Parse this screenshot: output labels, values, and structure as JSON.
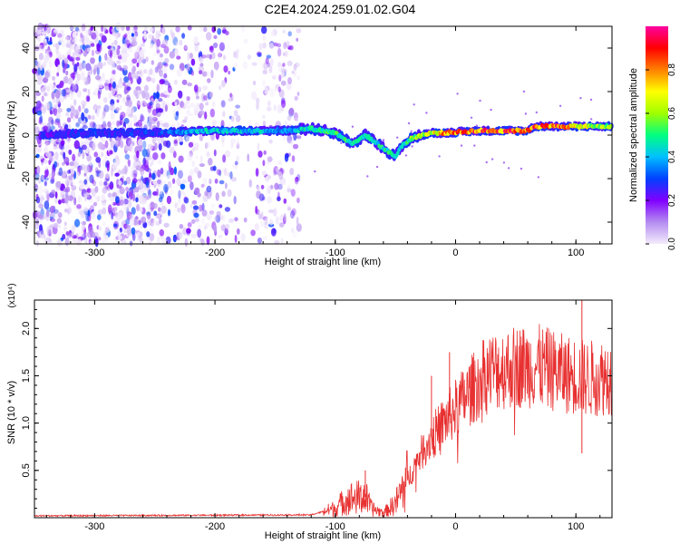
{
  "title": "C2E4.2024.259.01.02.G04",
  "chart_data": [
    {
      "type": "heatmap",
      "xlabel": "Height of straight line (km)",
      "ylabel": "Frequency (Hz)",
      "xlim": [
        -350,
        130
      ],
      "ylim": [
        -50,
        50
      ],
      "x_ticks": [
        -300,
        -200,
        -100,
        0,
        100
      ],
      "x_tick_labels": [
        "-300",
        "-200",
        "-100",
        "0",
        "100"
      ],
      "y_ticks": [
        -40,
        -20,
        0,
        20,
        40
      ],
      "y_tick_labels": [
        "-40",
        "-20",
        "0",
        "20",
        "40"
      ],
      "colorbar": {
        "label": "Normalized spectral amplitude",
        "range": [
          0,
          1
        ],
        "ticks": [
          0,
          0.2,
          0.4,
          0.6,
          0.8
        ],
        "tick_labels": [
          "0.0",
          "0.2",
          "0.4",
          "0.6",
          "0.8"
        ],
        "colors": [
          "#f4ecfc",
          "#b48cf0",
          "#8000ff",
          "#0040ff",
          "#00c0ff",
          "#00ff80",
          "#a0ff00",
          "#ffff00",
          "#ff8000",
          "#ff0000",
          "#ff00a0"
        ]
      },
      "noise_region_x": [
        -350,
        -130
      ],
      "signal_track": [
        {
          "x": -345,
          "y": 0,
          "amp": 0.25
        },
        {
          "x": -300,
          "y": 1,
          "amp": 0.3
        },
        {
          "x": -250,
          "y": 1,
          "amp": 0.3
        },
        {
          "x": -205,
          "y": 2,
          "amp": 0.45
        },
        {
          "x": -180,
          "y": 2,
          "amp": 0.45
        },
        {
          "x": -140,
          "y": 2,
          "amp": 0.4
        },
        {
          "x": -120,
          "y": 3,
          "amp": 0.5
        },
        {
          "x": -100,
          "y": 1,
          "amp": 0.55
        },
        {
          "x": -85,
          "y": -4,
          "amp": 0.5
        },
        {
          "x": -75,
          "y": 0,
          "amp": 0.45
        },
        {
          "x": -60,
          "y": -6,
          "amp": 0.5
        },
        {
          "x": -50,
          "y": -10,
          "amp": 0.5
        },
        {
          "x": -45,
          "y": -5,
          "amp": 0.5
        },
        {
          "x": -35,
          "y": -1,
          "amp": 0.6
        },
        {
          "x": -20,
          "y": 1,
          "amp": 0.7
        },
        {
          "x": -10,
          "y": 1,
          "amp": 0.8
        },
        {
          "x": 20,
          "y": 2,
          "amp": 0.9
        },
        {
          "x": 60,
          "y": 2,
          "amp": 0.9
        },
        {
          "x": 65,
          "y": 4,
          "amp": 0.9
        },
        {
          "x": 90,
          "y": 4,
          "amp": 0.9
        },
        {
          "x": 100,
          "y": 4,
          "amp": 0.7
        },
        {
          "x": 130,
          "y": 4,
          "amp": 0.6
        }
      ]
    },
    {
      "type": "line",
      "xlabel": "Height of straight line (km)",
      "ylabel": "SNR (10 * v/v)",
      "y_multiplier": "(x10⁴)",
      "xlim": [
        -350,
        130
      ],
      "ylim": [
        0,
        2.3
      ],
      "x_ticks": [
        -300,
        -200,
        -100,
        0,
        100
      ],
      "x_tick_labels": [
        "-300",
        "-200",
        "-100",
        "0",
        "100"
      ],
      "y_ticks": [
        0.5,
        1.0,
        1.5,
        2.0
      ],
      "y_tick_labels": [
        "0.5",
        "1.0",
        "1.5",
        "2.0"
      ],
      "color": "#e83030",
      "envelope": [
        {
          "x": -350,
          "y": 0.02
        },
        {
          "x": -120,
          "y": 0.03
        },
        {
          "x": -100,
          "y": 0.1
        },
        {
          "x": -90,
          "y": 0.2
        },
        {
          "x": -75,
          "y": 0.22
        },
        {
          "x": -70,
          "y": 0.1
        },
        {
          "x": -60,
          "y": 0.05
        },
        {
          "x": -50,
          "y": 0.15
        },
        {
          "x": -40,
          "y": 0.4
        },
        {
          "x": -30,
          "y": 0.65
        },
        {
          "x": -20,
          "y": 0.85
        },
        {
          "x": -10,
          "y": 1.0
        },
        {
          "x": 0,
          "y": 1.15
        },
        {
          "x": 10,
          "y": 1.3
        },
        {
          "x": 20,
          "y": 1.45
        },
        {
          "x": 30,
          "y": 1.55
        },
        {
          "x": 50,
          "y": 1.6
        },
        {
          "x": 70,
          "y": 1.6
        },
        {
          "x": 90,
          "y": 1.52
        },
        {
          "x": 100,
          "y": 1.5
        },
        {
          "x": 110,
          "y": 1.47
        },
        {
          "x": 130,
          "y": 1.5
        }
      ],
      "spikes": [
        {
          "x": -75,
          "y": 0.5
        },
        {
          "x": -20,
          "y": 1.5
        },
        {
          "x": -5,
          "y": 1.75
        },
        {
          "x": 105,
          "y": 2.3
        },
        {
          "x": 105,
          "y": 0.68
        }
      ]
    }
  ]
}
